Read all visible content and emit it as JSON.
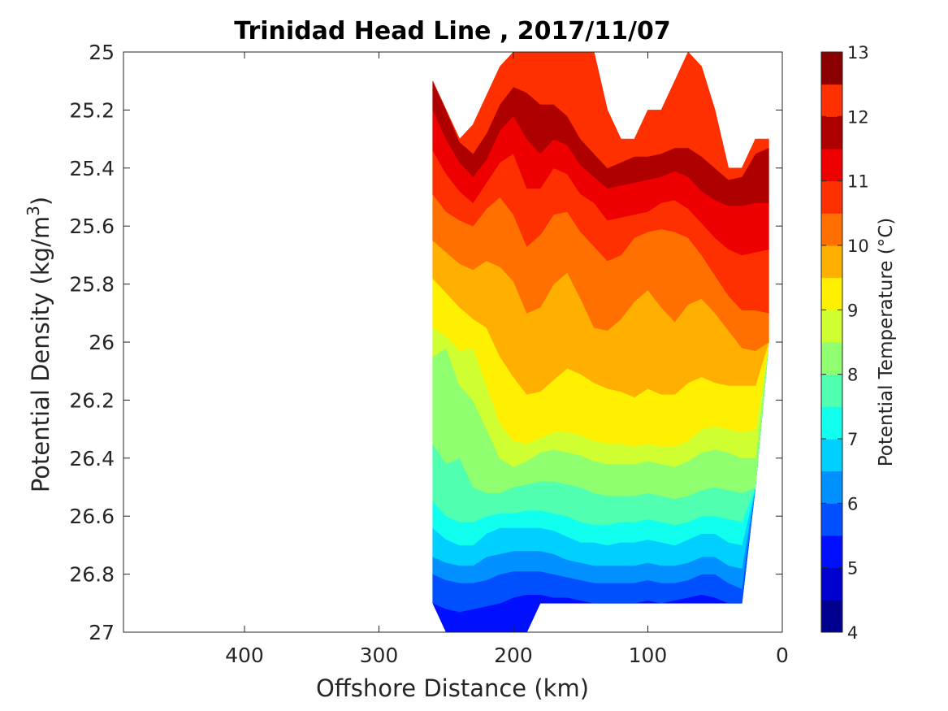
{
  "chart_data": {
    "type": "heatmap",
    "subtype": "filled-contour",
    "title": "Trinidad Head Line , 2017/11/07",
    "xlabel": "Offshore Distance (km)",
    "ylabel_main": "Potential Density (kg/m",
    "ylabel_sup": "3",
    "ylabel_end": ")",
    "xlim": [
      490,
      0
    ],
    "x_reversed": true,
    "ylim": [
      25,
      27
    ],
    "y_reversed": true,
    "x_ticks": [
      400,
      300,
      200,
      100,
      0
    ],
    "x_tick_labels": [
      "400",
      "300",
      "200",
      "100",
      "0"
    ],
    "y_ticks": [
      25,
      25.2,
      25.4,
      25.6,
      25.8,
      26,
      26.2,
      26.4,
      26.6,
      26.8,
      27
    ],
    "y_tick_labels": [
      "25",
      "25.2",
      "25.4",
      "25.6",
      "25.8",
      "26",
      "26.2",
      "26.4",
      "26.6",
      "26.8",
      "27"
    ],
    "colorbar": {
      "label": "Potential Temperature (°C)",
      "range": [
        4,
        13
      ],
      "step": 0.5,
      "tick_values": [
        4,
        5,
        6,
        7,
        8,
        9,
        10,
        11,
        12,
        13
      ],
      "tick_labels": [
        "4",
        "5",
        "6",
        "7",
        "8",
        "9",
        "10",
        "11",
        "12",
        "13"
      ],
      "colormap": [
        "#00008f",
        "#0000cf",
        "#0010ff",
        "#0050ff",
        "#0090ff",
        "#00d0ff",
        "#10ffef",
        "#50ffaf",
        "#90ff6f",
        "#cfff30",
        "#ffef00",
        "#ffaf00",
        "#ff7000",
        "#ff3000",
        "#ef0000",
        "#af0000",
        "#ff3000",
        "#8b0000"
      ]
    },
    "x": [
      260,
      250,
      240,
      230,
      220,
      210,
      200,
      190,
      180,
      170,
      160,
      150,
      140,
      130,
      120,
      110,
      100,
      90,
      80,
      70,
      60,
      50,
      40,
      30,
      20,
      10
    ],
    "top_density": [
      25.1,
      25.2,
      25.3,
      25.25,
      25.15,
      25.05,
      25.0,
      25.0,
      25.0,
      25.0,
      25.0,
      25.0,
      25.0,
      25.2,
      25.3,
      25.3,
      25.2,
      25.2,
      25.1,
      25.0,
      25.05,
      25.2,
      25.4,
      25.4,
      25.3,
      25.3
    ],
    "bottom_density": [
      26.9,
      27.0,
      27.0,
      27.0,
      27.0,
      27.0,
      27.0,
      27.0,
      26.9,
      26.9,
      26.9,
      26.9,
      26.9,
      26.9,
      26.9,
      26.9,
      26.9,
      26.9,
      26.9,
      26.9,
      26.9,
      26.9,
      26.9,
      26.9,
      26.5,
      26.0
    ],
    "isotherm_levels": [
      5.5,
      6,
      6.5,
      7,
      7.5,
      8,
      8.5,
      9,
      9.5,
      10,
      10.5,
      11,
      11.5,
      12
    ],
    "isotherm_density": [
      [
        26.9,
        26.92,
        26.93,
        26.92,
        26.91,
        26.9,
        26.88,
        26.87,
        26.87,
        26.88,
        26.88,
        26.89,
        26.9,
        26.9,
        26.9,
        26.9,
        26.89,
        26.9,
        26.89,
        26.88,
        26.87,
        26.88,
        26.9,
        26.9,
        26.95,
        27.1
      ],
      [
        26.8,
        26.82,
        26.83,
        26.83,
        26.82,
        26.8,
        26.79,
        26.79,
        26.79,
        26.8,
        26.81,
        26.82,
        26.83,
        26.83,
        26.83,
        26.83,
        26.82,
        26.83,
        26.83,
        26.82,
        26.8,
        26.8,
        26.83,
        26.85,
        26.9,
        27.0
      ],
      [
        26.74,
        26.76,
        26.77,
        26.77,
        26.74,
        26.73,
        26.72,
        26.72,
        26.72,
        26.73,
        26.75,
        26.76,
        26.77,
        26.77,
        26.77,
        26.77,
        26.76,
        26.77,
        26.77,
        26.76,
        26.74,
        26.74,
        26.77,
        26.78,
        26.8,
        26.9
      ],
      [
        26.64,
        26.68,
        26.7,
        26.7,
        26.66,
        26.64,
        26.64,
        26.64,
        26.64,
        26.65,
        26.67,
        26.69,
        26.69,
        26.7,
        26.69,
        26.69,
        26.68,
        26.69,
        26.7,
        26.68,
        26.66,
        26.66,
        26.69,
        26.7,
        26.7,
        26.8
      ],
      [
        26.55,
        26.6,
        26.62,
        26.62,
        26.6,
        26.59,
        26.59,
        26.58,
        26.58,
        26.59,
        26.6,
        26.62,
        26.63,
        26.63,
        26.62,
        26.62,
        26.61,
        26.62,
        26.63,
        26.62,
        26.6,
        26.6,
        26.61,
        26.62,
        26.62,
        26.7
      ],
      [
        26.35,
        26.42,
        26.4,
        26.5,
        26.52,
        26.52,
        26.5,
        26.49,
        26.48,
        26.48,
        26.49,
        26.5,
        26.52,
        26.53,
        26.53,
        26.53,
        26.52,
        26.53,
        26.54,
        26.53,
        26.51,
        26.5,
        26.51,
        26.52,
        26.52,
        26.6
      ],
      [
        26.05,
        26.02,
        26.15,
        26.2,
        26.3,
        26.4,
        26.43,
        26.41,
        26.38,
        26.37,
        26.38,
        26.39,
        26.41,
        26.42,
        26.42,
        26.42,
        26.41,
        26.42,
        26.43,
        26.41,
        26.38,
        26.37,
        26.38,
        26.4,
        26.4,
        26.5
      ],
      [
        25.95,
        25.98,
        26.03,
        26.02,
        26.15,
        26.28,
        26.34,
        26.35,
        26.33,
        26.31,
        26.31,
        26.32,
        26.34,
        26.35,
        26.35,
        26.36,
        26.35,
        26.36,
        26.36,
        26.34,
        26.3,
        26.29,
        26.3,
        26.31,
        26.3,
        26.4
      ],
      [
        25.78,
        25.83,
        25.88,
        25.92,
        25.95,
        26.05,
        26.12,
        26.18,
        26.17,
        26.13,
        26.09,
        26.11,
        26.14,
        26.16,
        26.17,
        26.19,
        26.16,
        26.18,
        26.18,
        26.14,
        26.12,
        26.14,
        26.15,
        26.15,
        26.15,
        26.2
      ],
      [
        25.65,
        25.69,
        25.73,
        25.75,
        25.72,
        25.74,
        25.79,
        25.9,
        25.88,
        25.8,
        25.76,
        25.85,
        25.95,
        25.96,
        25.92,
        25.86,
        25.82,
        25.88,
        25.93,
        25.87,
        25.85,
        25.9,
        25.96,
        26.02,
        26.03,
        26.0
      ],
      [
        25.49,
        25.55,
        25.58,
        25.6,
        25.54,
        25.5,
        25.56,
        25.67,
        25.63,
        25.56,
        25.55,
        25.62,
        25.67,
        25.72,
        25.7,
        25.64,
        25.62,
        25.61,
        25.62,
        25.64,
        25.7,
        25.77,
        25.84,
        25.89,
        25.89,
        25.9
      ],
      [
        25.34,
        25.42,
        25.48,
        25.52,
        25.45,
        25.38,
        25.35,
        25.47,
        25.47,
        25.4,
        25.42,
        25.49,
        25.52,
        25.58,
        25.57,
        25.56,
        25.55,
        25.52,
        25.51,
        25.54,
        25.59,
        25.64,
        25.68,
        25.7,
        25.69,
        25.68
      ],
      [
        25.2,
        25.3,
        25.38,
        25.43,
        25.37,
        25.27,
        25.22,
        25.3,
        25.35,
        25.3,
        25.32,
        25.39,
        25.43,
        25.47,
        25.46,
        25.45,
        25.44,
        25.43,
        25.41,
        25.43,
        25.48,
        25.51,
        25.53,
        25.53,
        25.52,
        25.52
      ],
      [
        25.1,
        25.2,
        25.31,
        25.35,
        25.28,
        25.18,
        25.12,
        25.14,
        25.18,
        25.18,
        25.22,
        25.3,
        25.35,
        25.4,
        25.38,
        25.36,
        25.36,
        25.35,
        25.33,
        25.33,
        25.36,
        25.4,
        25.44,
        25.43,
        25.35,
        25.33
      ]
    ]
  }
}
